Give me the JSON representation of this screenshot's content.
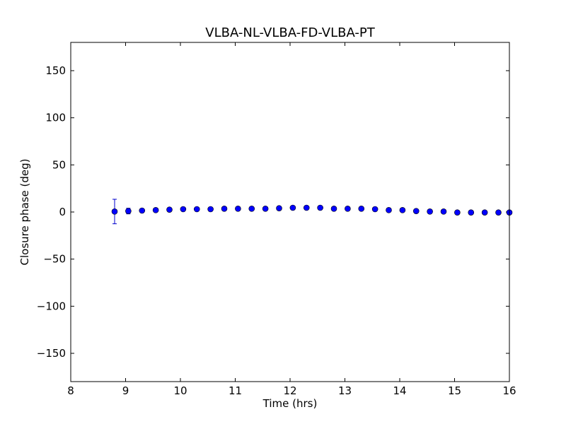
{
  "chart_data": {
    "type": "scatter",
    "title": "VLBA-NL-VLBA-FD-VLBA-PT",
    "xlabel": "Time (hrs)",
    "ylabel": "Closure phase (deg)",
    "xlim": [
      8,
      16
    ],
    "ylim": [
      -180,
      180
    ],
    "xticks": [
      8,
      9,
      10,
      11,
      12,
      13,
      14,
      15,
      16
    ],
    "xtick_labels": [
      "8",
      "9",
      "10",
      "11",
      "12",
      "13",
      "14",
      "15",
      "16"
    ],
    "yticks": [
      150,
      100,
      50,
      0,
      -50,
      -100,
      -150
    ],
    "ytick_labels": [
      "150",
      "100",
      "50",
      "0",
      "−50",
      "−100",
      "−150"
    ],
    "grid": false,
    "marker_color": "#0000ff",
    "errorbar_color": "#0000cc",
    "points": [
      {
        "x": 8.8,
        "y": 0.5,
        "err": 13
      },
      {
        "x": 9.05,
        "y": 1.0,
        "err": 3
      },
      {
        "x": 9.3,
        "y": 1.5,
        "err": 1.5
      },
      {
        "x": 9.55,
        "y": 2.0,
        "err": 1.5
      },
      {
        "x": 9.8,
        "y": 2.5,
        "err": 1.5
      },
      {
        "x": 10.05,
        "y": 3.0,
        "err": 1.5
      },
      {
        "x": 10.3,
        "y": 3.0,
        "err": 1.5
      },
      {
        "x": 10.55,
        "y": 3.0,
        "err": 1.5
      },
      {
        "x": 10.8,
        "y": 3.5,
        "err": 1.5
      },
      {
        "x": 11.05,
        "y": 3.5,
        "err": 1.5
      },
      {
        "x": 11.3,
        "y": 3.5,
        "err": 1.5
      },
      {
        "x": 11.55,
        "y": 3.5,
        "err": 1.5
      },
      {
        "x": 11.8,
        "y": 4.0,
        "err": 1.5
      },
      {
        "x": 12.05,
        "y": 4.5,
        "err": 1.5
      },
      {
        "x": 12.3,
        "y": 4.5,
        "err": 1.5
      },
      {
        "x": 12.55,
        "y": 4.5,
        "err": 1.5
      },
      {
        "x": 12.8,
        "y": 3.5,
        "err": 1.5
      },
      {
        "x": 13.05,
        "y": 3.5,
        "err": 1.5
      },
      {
        "x": 13.3,
        "y": 3.5,
        "err": 1.5
      },
      {
        "x": 13.55,
        "y": 3.0,
        "err": 1.5
      },
      {
        "x": 13.8,
        "y": 2.0,
        "err": 1.5
      },
      {
        "x": 14.05,
        "y": 2.0,
        "err": 1.5
      },
      {
        "x": 14.3,
        "y": 1.0,
        "err": 1.5
      },
      {
        "x": 14.55,
        "y": 0.5,
        "err": 1.5
      },
      {
        "x": 14.8,
        "y": 0.5,
        "err": 1.5
      },
      {
        "x": 15.05,
        "y": -0.5,
        "err": 1.5
      },
      {
        "x": 15.3,
        "y": -0.5,
        "err": 1.5
      },
      {
        "x": 15.55,
        "y": -0.5,
        "err": 1.5
      },
      {
        "x": 15.8,
        "y": -0.5,
        "err": 1.5
      },
      {
        "x": 16.0,
        "y": -0.5,
        "err": 1.5
      }
    ]
  }
}
